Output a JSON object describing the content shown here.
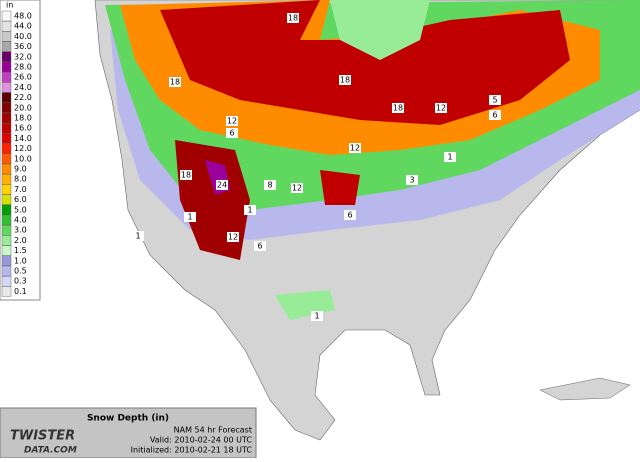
{
  "legend": {
    "unit": "in",
    "items": [
      {
        "label": "48.0",
        "color": "#f8f8f8"
      },
      {
        "label": "44.0",
        "color": "#e4e4e4"
      },
      {
        "label": "40.0",
        "color": "#c8c8c8"
      },
      {
        "label": "36.0",
        "color": "#a8a8a8"
      },
      {
        "label": "32.0",
        "color": "#6a006a"
      },
      {
        "label": "28.0",
        "color": "#9a009a"
      },
      {
        "label": "26.0",
        "color": "#c040c0"
      },
      {
        "label": "24.0",
        "color": "#e090e0"
      },
      {
        "label": "22.0",
        "color": "#5a0000"
      },
      {
        "label": "20.0",
        "color": "#800000"
      },
      {
        "label": "18.0",
        "color": "#a00000"
      },
      {
        "label": "16.0",
        "color": "#c00000"
      },
      {
        "label": "14.0",
        "color": "#e00000"
      },
      {
        "label": "12.0",
        "color": "#ff2000"
      },
      {
        "label": "10.0",
        "color": "#ff5a00"
      },
      {
        "label": "9.0",
        "color": "#ff8c00"
      },
      {
        "label": "8.0",
        "color": "#ffb000"
      },
      {
        "label": "7.0",
        "color": "#ffd200"
      },
      {
        "label": "6.0",
        "color": "#d8e000"
      },
      {
        "label": "5.0",
        "color": "#00a000"
      },
      {
        "label": "4.0",
        "color": "#30c030"
      },
      {
        "label": "3.0",
        "color": "#60d860"
      },
      {
        "label": "2.0",
        "color": "#98ec98"
      },
      {
        "label": "1.5",
        "color": "#c8f8c8"
      },
      {
        "label": "1.0",
        "color": "#9898d8"
      },
      {
        "label": "0.5",
        "color": "#b8b8ec"
      },
      {
        "label": "0.3",
        "color": "#d6d6f6"
      },
      {
        "label": "0.1",
        "color": "#e8e8e8"
      }
    ]
  },
  "map_labels": [
    "18",
    "18",
    "12",
    "18",
    "12",
    "6",
    "12",
    "12",
    "18",
    "24",
    "8",
    "12",
    "6",
    "1",
    "3",
    "1",
    "1",
    "18",
    "6",
    "1",
    "6",
    "5",
    "1"
  ],
  "info": {
    "title": "Snow Depth (in)",
    "forecast": "NAM 54 hr Forecast",
    "valid": "Valid: 2010-02-24 00 UTC",
    "initialized": "Initialized: 2010-02-21 18 UTC",
    "logo_top": "TWISTER",
    "logo_bottom": "DATA.COM"
  }
}
